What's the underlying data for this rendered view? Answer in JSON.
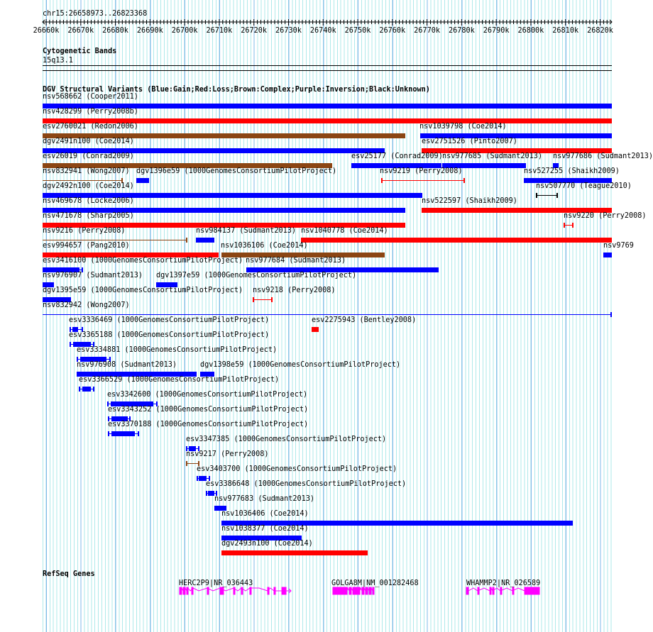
{
  "ruler": {
    "location": "chr15:26658973..26823368",
    "ticks": [
      "26660k",
      "26670k",
      "26680k",
      "26690k",
      "26700k",
      "26710k",
      "26720k",
      "26730k",
      "26740k",
      "26750k",
      "26760k",
      "26770k",
      "26780k",
      "26790k",
      "26800k",
      "26810k",
      "26820k"
    ]
  },
  "cytoband": {
    "title": "Cytogenetic Bands",
    "band": "15q13.1"
  },
  "dgv": {
    "title": "DGV Structural Variants (Blue:Gain;Red:Loss;Brown:Complex;Purple:Inversion;Black:Unknown)",
    "colors": {
      "gain": "#0000ff",
      "loss": "#ff0000",
      "complex": "#8b4513",
      "inversion": "#800080",
      "unknown": "#000000"
    },
    "features": [
      {
        "label": "nsv568662 (Cooper2011)",
        "type": "gain"
      },
      {
        "label": "nsv428299 (Perry2008b)",
        "type": "loss"
      },
      {
        "label": "esv2760021 (Redon2006)",
        "type": "complex"
      },
      {
        "label": "nsv1039798 (Coe2014)",
        "type": "gain"
      },
      {
        "label": "dgv2491n100 (Coe2014)",
        "type": "gain"
      },
      {
        "label": "esv2751526 (Pinto2007)",
        "type": "loss"
      },
      {
        "label": "esv26019 (Conrad2009)",
        "type": "complex"
      },
      {
        "label": "esv25177 (Conrad2009)",
        "type": "gain"
      },
      {
        "label": "nsv977685 (Sudmant2013)",
        "type": "gain"
      },
      {
        "label": "nsv977686 (Sudmant2013)",
        "type": "gain"
      },
      {
        "label": "nsv832941 (Wong2007)",
        "type": "complex"
      },
      {
        "label": "dgv1396e59 (1000GenomesConsortiumPilotProject)",
        "type": "gain"
      },
      {
        "label": "nsv9219 (Perry2008)",
        "type": "loss"
      },
      {
        "label": "nsv527255 (Shaikh2009)",
        "type": "gain"
      },
      {
        "label": "dgv2492n100 (Coe2014)",
        "type": "gain"
      },
      {
        "label": "nsv507770 (Teague2010)",
        "type": "unknown"
      },
      {
        "label": "nsv469678 (Locke2006)",
        "type": "gain"
      },
      {
        "label": "nsv522597 (Shaikh2009)",
        "type": "loss"
      },
      {
        "label": "nsv471678 (Sharp2005)",
        "type": "loss"
      },
      {
        "label": "nsv9220 (Perry2008)",
        "type": "loss"
      },
      {
        "label": "nsv9216 (Perry2008)",
        "type": "complex"
      },
      {
        "label": "nsv984137 (Sudmant2013)",
        "type": "gain"
      },
      {
        "label": "nsv1040778 (Coe2014)",
        "type": "loss"
      },
      {
        "label": "esv994657 (Pang2010)",
        "type": "loss"
      },
      {
        "label": "nsv1036106 (Coe2014)",
        "type": "complex"
      },
      {
        "label": "nsv9769",
        "type": "gain"
      },
      {
        "label": "esv3416100 (1000GenomesConsortiumPilotProject)",
        "type": "gain"
      },
      {
        "label": "nsv977684 (Sudmant2013)",
        "type": "gain"
      },
      {
        "label": "nsv976907 (Sudmant2013)",
        "type": "gain"
      },
      {
        "label": "dgv1397e59 (1000GenomesConsortiumPilotProject)",
        "type": "gain"
      },
      {
        "label": "dgv1395e59 (1000GenomesConsortiumPilotProject)",
        "type": "gain"
      },
      {
        "label": "nsv9218 (Perry2008)",
        "type": "loss"
      },
      {
        "label": "nsv832942 (Wong2007)",
        "type": "gain"
      },
      {
        "label": "esv3336469 (1000GenomesConsortiumPilotProject)",
        "type": "gain"
      },
      {
        "label": "esv2275943 (Bentley2008)",
        "type": "loss"
      },
      {
        "label": "esv3365188 (1000GenomesConsortiumPilotProject)",
        "type": "gain"
      },
      {
        "label": "esv3334881 (1000GenomesConsortiumPilotProject)",
        "type": "gain"
      },
      {
        "label": "nsv976908 (Sudmant2013)",
        "type": "gain"
      },
      {
        "label": "dgv1398e59 (1000GenomesConsortiumPilotProject)",
        "type": "gain"
      },
      {
        "label": "esv3366529 (1000GenomesConsortiumPilotProject)",
        "type": "gain"
      },
      {
        "label": "esv3342600 (1000GenomesConsortiumPilotProject)",
        "type": "gain"
      },
      {
        "label": "esv3343252 (1000GenomesConsortiumPilotProject)",
        "type": "gain"
      },
      {
        "label": "esv3370188 (1000GenomesConsortiumPilotProject)",
        "type": "gain"
      },
      {
        "label": "esv3347385 (1000GenomesConsortiumPilotProject)",
        "type": "gain"
      },
      {
        "label": "nsv9217 (Perry2008)",
        "type": "complex"
      },
      {
        "label": "esv3403700 (1000GenomesConsortiumPilotProject)",
        "type": "gain"
      },
      {
        "label": "esv3386648 (1000GenomesConsortiumPilotProject)",
        "type": "gain"
      },
      {
        "label": "nsv977683 (Sudmant2013)",
        "type": "gain"
      },
      {
        "label": "nsv1036406 (Coe2014)",
        "type": "gain"
      },
      {
        "label": "nsv1038377 (Coe2014)",
        "type": "gain"
      },
      {
        "label": "dgv2493n100 (Coe2014)",
        "type": "loss"
      }
    ]
  },
  "refseq": {
    "title": "RefSeq Genes",
    "color": "#ff00ff",
    "genes": [
      {
        "label": "HERC2P9|NR_036443"
      },
      {
        "label": "GOLGA8M|NM_001282468"
      },
      {
        "label": "WHAMMP2|NR_026589"
      }
    ]
  }
}
